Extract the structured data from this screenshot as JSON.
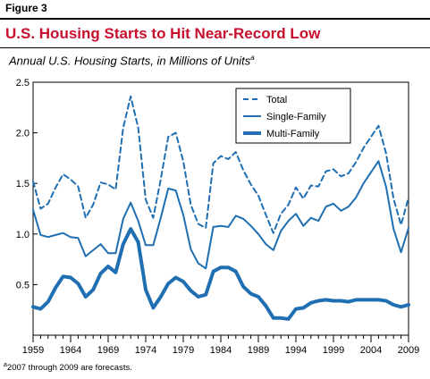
{
  "header": {
    "figure_label": "Figure 3",
    "title": "U.S. Housing Starts to Hit Near-Record Low"
  },
  "subtitle": {
    "text": "Annual U.S. Housing Starts, in Millions of Units",
    "sup": "a"
  },
  "footnote": {
    "sup": "a",
    "text": "2007 through 2009 are forecasts."
  },
  "colors": {
    "title": "#c8102e",
    "series": "#1f6fb2",
    "rule": "#000000"
  },
  "chart_data": {
    "type": "line",
    "x": [
      1959,
      1960,
      1961,
      1962,
      1963,
      1964,
      1965,
      1966,
      1967,
      1968,
      1969,
      1970,
      1971,
      1972,
      1973,
      1974,
      1975,
      1976,
      1977,
      1978,
      1979,
      1980,
      1981,
      1982,
      1983,
      1984,
      1985,
      1986,
      1987,
      1988,
      1989,
      1990,
      1991,
      1992,
      1993,
      1994,
      1995,
      1996,
      1997,
      1998,
      1999,
      2000,
      2001,
      2002,
      2003,
      2004,
      2005,
      2006,
      2007,
      2008,
      2009
    ],
    "series": [
      {
        "name": "Total",
        "style": "dashed",
        "values": [
          1.52,
          1.25,
          1.3,
          1.46,
          1.59,
          1.54,
          1.47,
          1.16,
          1.29,
          1.51,
          1.49,
          1.44,
          2.05,
          2.36,
          2.05,
          1.34,
          1.16,
          1.54,
          1.96,
          2.0,
          1.72,
          1.29,
          1.1,
          1.06,
          1.7,
          1.77,
          1.74,
          1.81,
          1.63,
          1.49,
          1.38,
          1.19,
          1.01,
          1.2,
          1.29,
          1.46,
          1.35,
          1.48,
          1.47,
          1.62,
          1.64,
          1.57,
          1.6,
          1.71,
          1.85,
          1.96,
          2.07,
          1.8,
          1.35,
          1.09,
          1.36
        ]
      },
      {
        "name": "Single-Family",
        "style": "solid",
        "values": [
          1.24,
          0.99,
          0.97,
          0.99,
          1.01,
          0.97,
          0.96,
          0.78,
          0.84,
          0.9,
          0.81,
          0.81,
          1.15,
          1.31,
          1.13,
          0.89,
          0.89,
          1.16,
          1.45,
          1.43,
          1.19,
          0.85,
          0.71,
          0.66,
          1.07,
          1.08,
          1.07,
          1.18,
          1.15,
          1.08,
          1.0,
          0.9,
          0.84,
          1.03,
          1.13,
          1.2,
          1.08,
          1.16,
          1.13,
          1.27,
          1.3,
          1.23,
          1.27,
          1.36,
          1.5,
          1.61,
          1.72,
          1.47,
          1.05,
          0.82,
          1.06
        ]
      },
      {
        "name": "Multi-Family",
        "style": "thick",
        "values": [
          0.28,
          0.26,
          0.33,
          0.47,
          0.58,
          0.57,
          0.51,
          0.38,
          0.45,
          0.61,
          0.68,
          0.62,
          0.9,
          1.05,
          0.92,
          0.45,
          0.27,
          0.38,
          0.51,
          0.57,
          0.53,
          0.44,
          0.38,
          0.4,
          0.63,
          0.67,
          0.67,
          0.63,
          0.48,
          0.41,
          0.38,
          0.29,
          0.17,
          0.17,
          0.16,
          0.26,
          0.27,
          0.32,
          0.34,
          0.35,
          0.34,
          0.34,
          0.33,
          0.35,
          0.35,
          0.35,
          0.35,
          0.34,
          0.3,
          0.28,
          0.3
        ]
      }
    ],
    "xticks": [
      1959,
      1964,
      1969,
      1974,
      1979,
      1984,
      1989,
      1994,
      1999,
      2004,
      2009
    ],
    "yticks": [
      0.5,
      1.0,
      1.5,
      2.0,
      2.5
    ],
    "ytick_labels": [
      "0.5",
      "1.0",
      "1.5",
      "2.0",
      "2.5"
    ],
    "xlim": [
      1959,
      2009
    ],
    "ylim": [
      0,
      2.5
    ],
    "grid": false,
    "legend_position": "top-center"
  }
}
